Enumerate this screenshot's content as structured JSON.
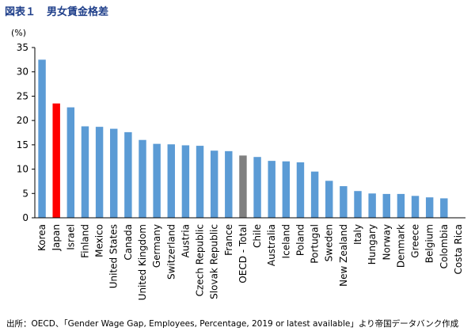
{
  "figure": {
    "label": "図表１",
    "title": "男女賃金格差",
    "source": "出所：OECD、「Gender Wage Gap,  Employees, Percentage, 2019 or latest available」より帝国データバンク作成"
  },
  "colors": {
    "default_bar": "#5b9bd5",
    "japan_bar": "#ff0000",
    "oecd_bar": "#808080",
    "axis": "#000000"
  },
  "chart_data": {
    "type": "bar",
    "title": "男女賃金格差",
    "ylabel": "(%)",
    "xlabel": "",
    "ylim": [
      0,
      35
    ],
    "yticks": [
      0,
      5,
      10,
      15,
      20,
      25,
      30,
      35
    ],
    "grid": false,
    "categories": [
      "Korea",
      "Japan",
      "Israel",
      "Finland",
      "Mexico",
      "United States",
      "Canada",
      "United Kingdom",
      "Germany",
      "Switzerland",
      "Austria",
      "Czech Republic",
      "Slovak Republic",
      "France",
      "OECD - Total",
      "Chile",
      "Australia",
      "Iceland",
      "Poland",
      "Portugal",
      "Sweden",
      "New Zealand",
      "Italy",
      "Hungary",
      "Norway",
      "Denmark",
      "Greece",
      "Belgium",
      "Colombia",
      "Costa Rica"
    ],
    "values": [
      32.5,
      23.5,
      22.7,
      18.8,
      18.7,
      18.3,
      17.6,
      16.0,
      15.2,
      15.1,
      14.9,
      14.8,
      13.8,
      13.7,
      12.8,
      12.5,
      11.7,
      11.6,
      11.4,
      9.5,
      7.6,
      6.5,
      5.5,
      5.0,
      4.9,
      4.9,
      4.5,
      4.2,
      4.0,
      0
    ],
    "highlight": {
      "Japan": "japan_bar",
      "OECD - Total": "oecd_bar"
    }
  }
}
